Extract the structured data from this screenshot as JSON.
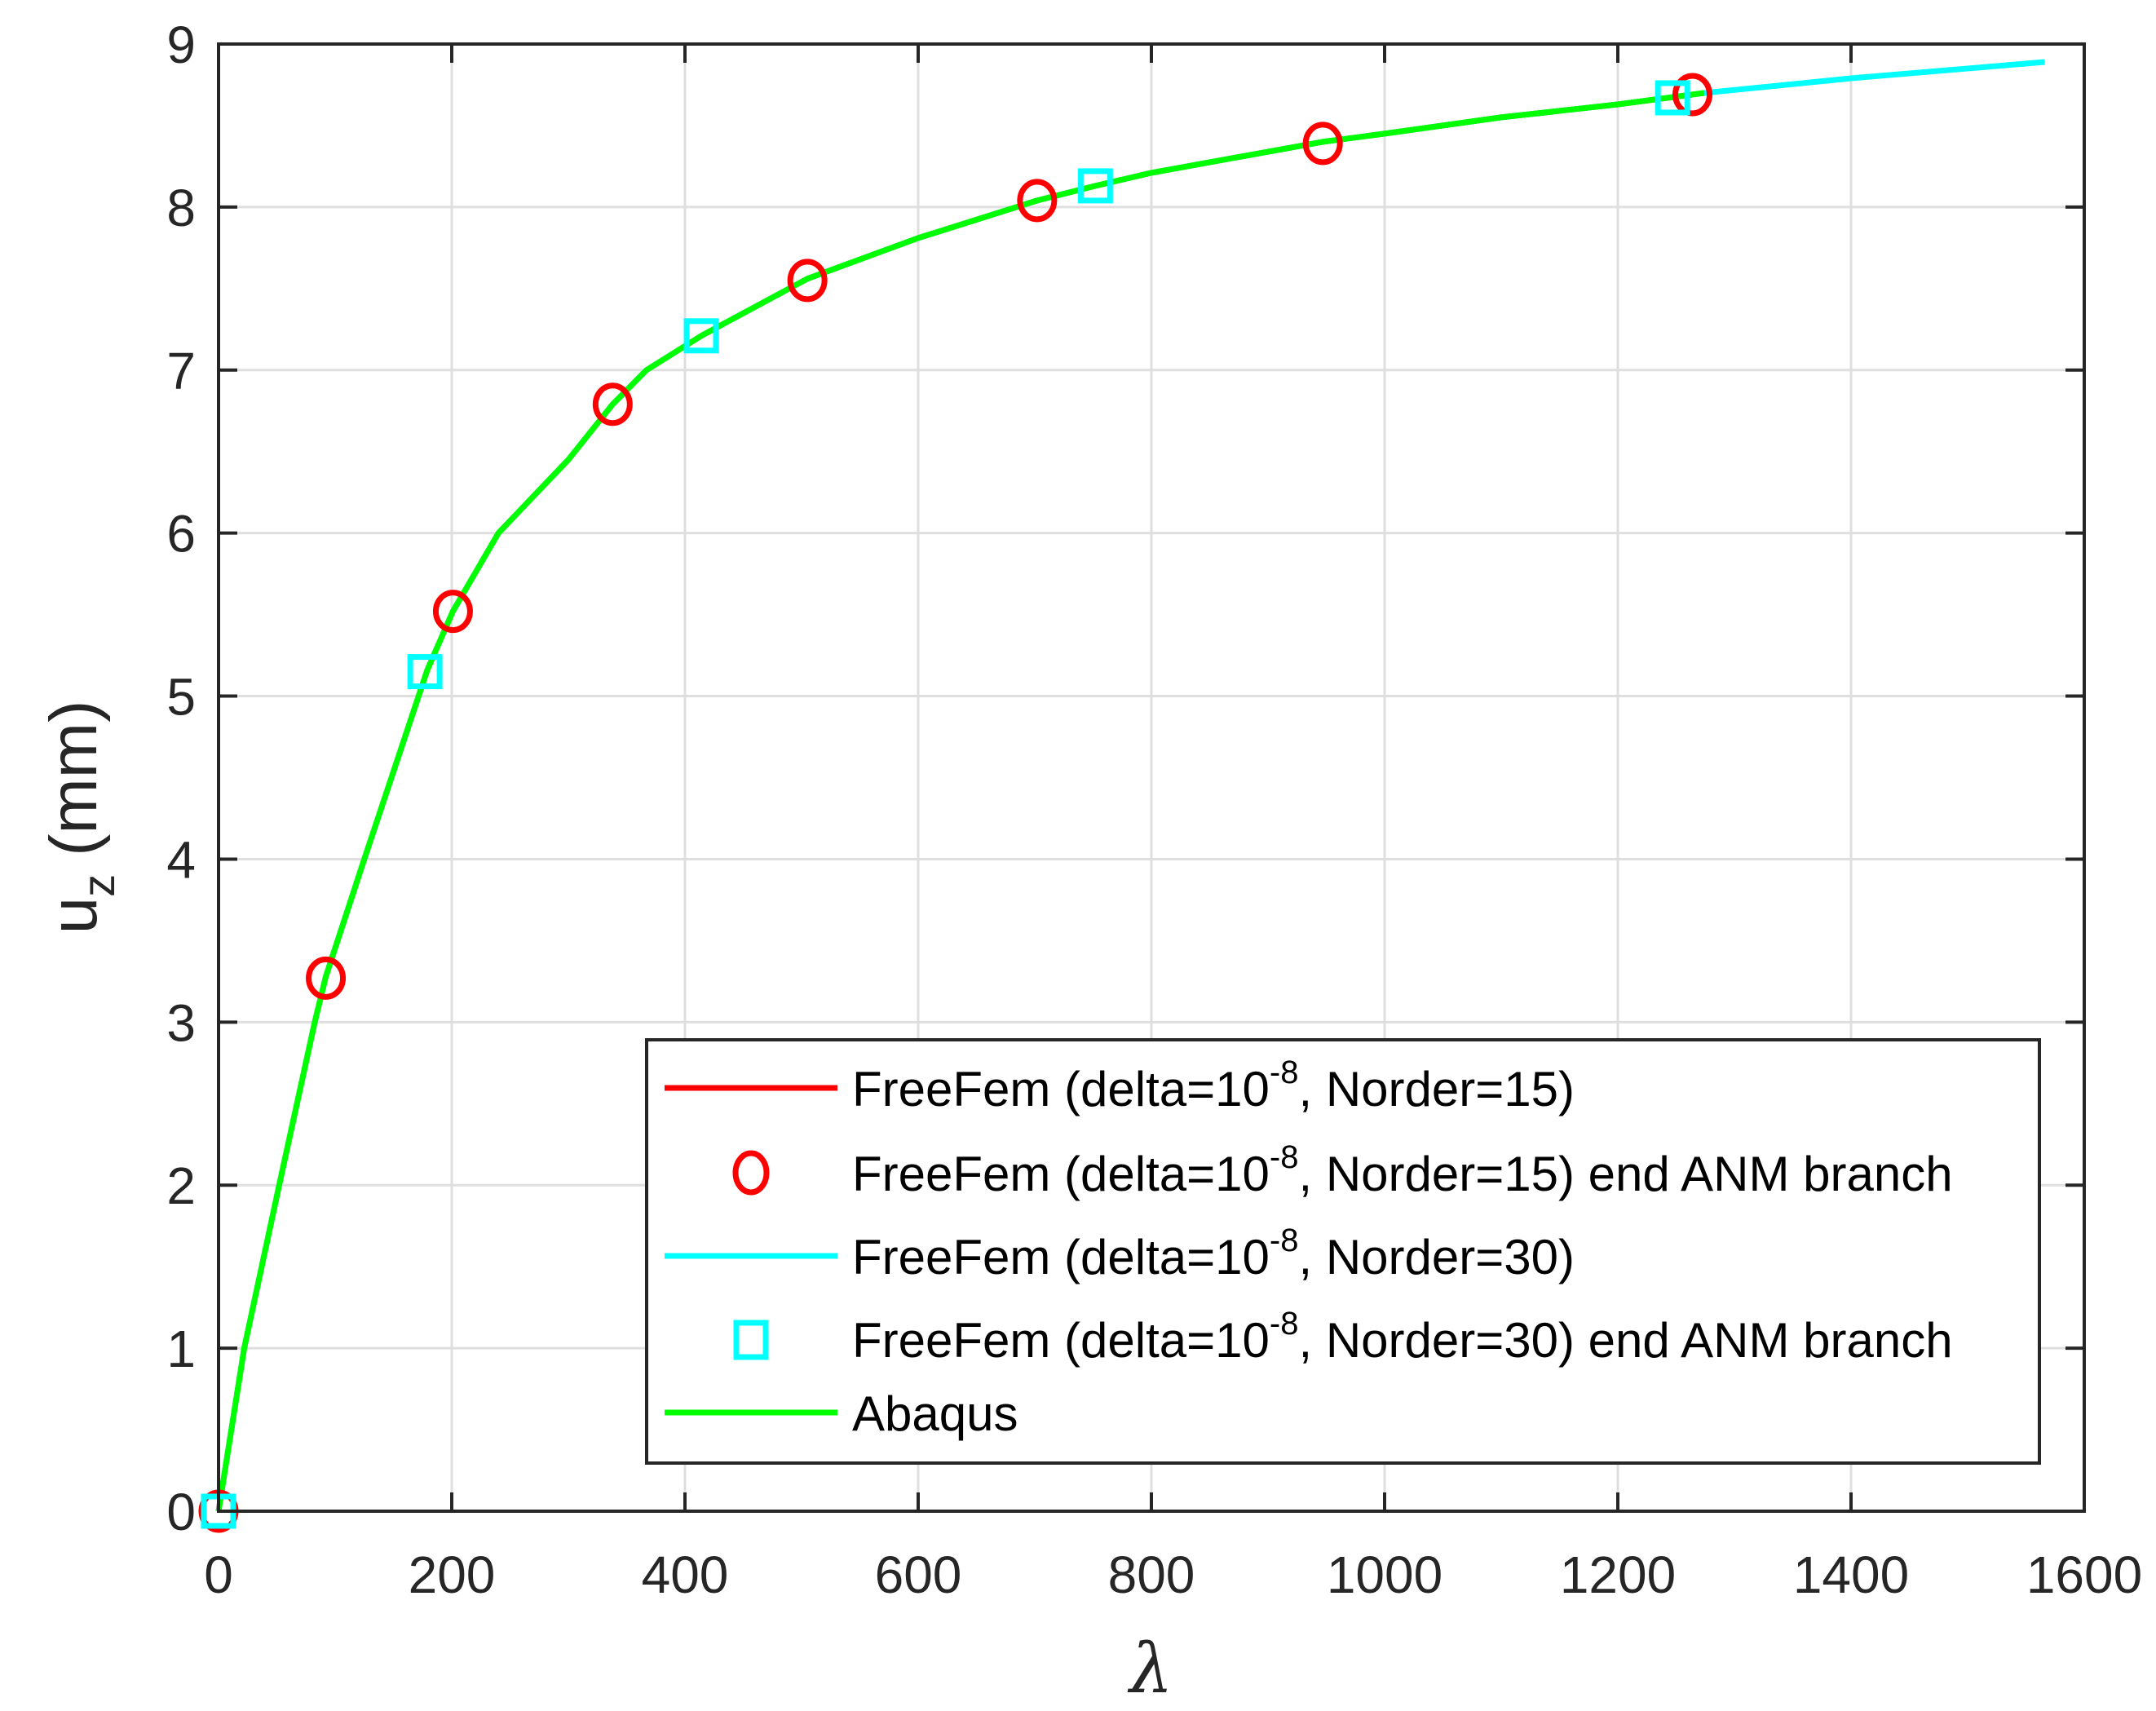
{
  "chart_data": {
    "type": "line",
    "title": "",
    "xlabel": "λ",
    "ylabel": "u_z (mm)",
    "ylabel_main": "u",
    "ylabel_sub": "z",
    "ylabel_unit": "(mm)",
    "xlim": [
      0,
      1600
    ],
    "ylim": [
      0,
      9
    ],
    "grid": true,
    "legend_position": "lower right (inside)",
    "x_ticks": [
      0,
      200,
      400,
      600,
      800,
      1000,
      1200,
      1400,
      1600
    ],
    "y_ticks": [
      0,
      1,
      2,
      3,
      4,
      5,
      6,
      7,
      8,
      9
    ],
    "series": [
      {
        "name": "FreeFem (delta=10^-8, Norder=15)",
        "style": "line",
        "color": "#ff0000",
        "x": [
          0,
          22,
          52,
          82.5,
          92,
          125,
          179,
          201,
          240,
          300,
          338,
          367,
          414,
          505,
          600,
          702,
          752,
          800,
          947,
          1000,
          1100,
          1200,
          1264
        ],
        "y": [
          0,
          1,
          2,
          3,
          3.28,
          4,
          5.16,
          5.52,
          6,
          6.45,
          6.79,
          7,
          7.21,
          7.56,
          7.81,
          8.04,
          8.13,
          8.21,
          8.4,
          8.45,
          8.55,
          8.63,
          8.69
        ]
      },
      {
        "name": "FreeFem (delta=10^-8, Norder=15) end ANM branch",
        "style": "marker-circle",
        "color": "#ff0000",
        "x": [
          0,
          92,
          201,
          338,
          505,
          702,
          947,
          1264
        ],
        "y": [
          0,
          3.27,
          5.52,
          6.79,
          7.55,
          8.04,
          8.39,
          8.69
        ]
      },
      {
        "name": "FreeFem (delta=10^-8, Norder=30)",
        "style": "line",
        "color": "#00ffff",
        "x": [
          0,
          22,
          52,
          82.5,
          92,
          125,
          179,
          201,
          240,
          300,
          338,
          367,
          414,
          505,
          600,
          702,
          752,
          800,
          947,
          1000,
          1100,
          1200,
          1274,
          1400,
          1566
        ],
        "y": [
          0,
          1,
          2,
          3,
          3.28,
          4,
          5.16,
          5.52,
          6,
          6.45,
          6.79,
          7,
          7.21,
          7.56,
          7.81,
          8.04,
          8.13,
          8.21,
          8.4,
          8.45,
          8.55,
          8.63,
          8.7,
          8.79,
          8.89
        ]
      },
      {
        "name": "FreeFem (delta=10^-8, Norder=30) end ANM branch",
        "style": "marker-square",
        "color": "#00ffff",
        "x": [
          0,
          177,
          414,
          752,
          1247
        ],
        "y": [
          0,
          5.15,
          7.21,
          8.13,
          8.67
        ]
      },
      {
        "name": "Abaqus",
        "style": "line",
        "color": "#00ff00",
        "x": [
          0,
          22,
          52,
          82.5,
          92,
          125,
          179,
          201,
          240,
          300,
          338,
          367,
          414,
          505,
          600,
          702,
          752,
          800,
          947,
          1000,
          1100,
          1200,
          1274
        ],
        "y": [
          0,
          1,
          2,
          3,
          3.28,
          4,
          5.16,
          5.52,
          6,
          6.45,
          6.79,
          7,
          7.21,
          7.56,
          7.81,
          8.04,
          8.13,
          8.21,
          8.4,
          8.45,
          8.55,
          8.63,
          8.7
        ]
      }
    ]
  },
  "legend": {
    "items": [
      {
        "prefix": "FreeFem (delta=10",
        "sup": "-8",
        "suffix": ", Norder=15)",
        "symbol": "line",
        "color": "#ff0000"
      },
      {
        "prefix": "FreeFem (delta=10",
        "sup": "-8",
        "suffix": ", Norder=15) end ANM branch",
        "symbol": "circle",
        "color": "#ff0000"
      },
      {
        "prefix": "FreeFem (delta=10",
        "sup": "-8",
        "suffix": ", Norder=30)",
        "symbol": "line",
        "color": "#00ffff"
      },
      {
        "prefix": "FreeFem (delta=10",
        "sup": "-8",
        "suffix": ", Norder=30) end ANM branch",
        "symbol": "square",
        "color": "#00ffff"
      },
      {
        "prefix": "Abaqus",
        "sup": "",
        "suffix": "",
        "symbol": "line",
        "color": "#00ff00"
      }
    ]
  },
  "colors": {
    "axis": "#262626",
    "grid": "#dfdfdf",
    "background": "#ffffff"
  }
}
